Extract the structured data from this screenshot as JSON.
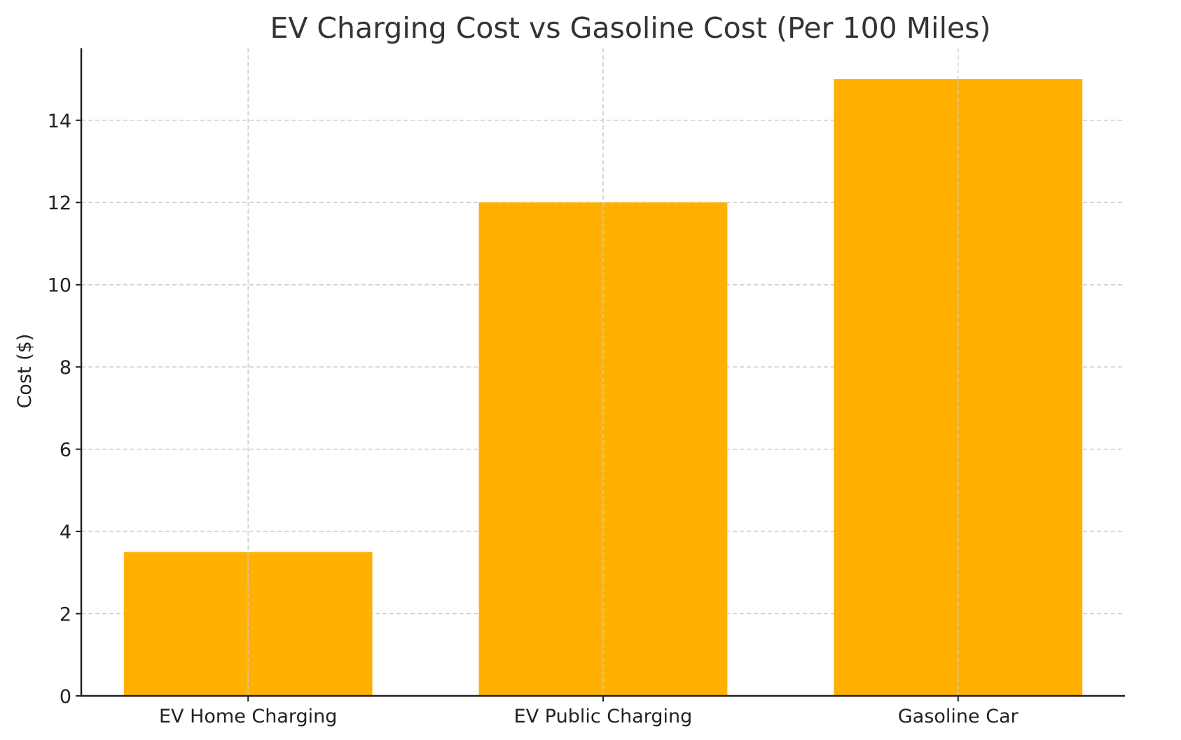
{
  "chart_data": {
    "type": "bar",
    "title": "EV Charging Cost vs Gasoline Cost (Per 100 Miles)",
    "xlabel": "",
    "ylabel": "Cost ($)",
    "categories": [
      "EV Home Charging",
      "EV Public Charging",
      "Gasoline Car"
    ],
    "values": [
      3.5,
      12,
      15
    ],
    "ylim": [
      0,
      15.75
    ],
    "yticks": [
      0,
      2,
      4,
      6,
      8,
      10,
      12,
      14
    ],
    "grid": true,
    "bar_color": "#FFB000",
    "legend": "none"
  }
}
